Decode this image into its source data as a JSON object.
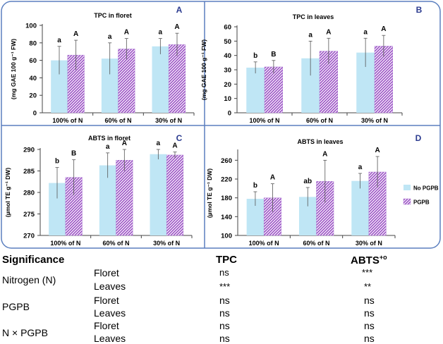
{
  "colors": {
    "no_pgpb": "#bfe6f5",
    "pgpb": "#9a4fc4",
    "pgpb_bg": "#ffffff",
    "frame": "#5b7fbf",
    "panel_letter": "#2b3b8f"
  },
  "chart_data": [
    {
      "id": "A",
      "type": "bar",
      "title": "TPC in floret",
      "ylabel": "(mg GAE 100 g⁻¹ FW)",
      "ylim": [
        0,
        100
      ],
      "yticks": [
        0,
        20,
        40,
        60,
        80,
        100
      ],
      "categories": [
        "100% of N",
        "60% of N",
        "30% of N"
      ],
      "series": [
        {
          "name": "No PGPB",
          "values": [
            60,
            62,
            76
          ],
          "errors": [
            16,
            18,
            9
          ],
          "letters": [
            "a",
            "a",
            "a"
          ]
        },
        {
          "name": "PGPB",
          "values": [
            66,
            73,
            78
          ],
          "errors": [
            17,
            12,
            13
          ],
          "letters": [
            "A",
            "A",
            "A"
          ]
        }
      ]
    },
    {
      "id": "B",
      "type": "bar",
      "title": "TPC in leaves",
      "ylabel": "(mg GAE 100 g⁻¹ FW)",
      "ylim": [
        0,
        60
      ],
      "yticks": [
        0,
        10,
        20,
        30,
        40,
        50,
        60
      ],
      "categories": [
        "100% of N",
        "60% of N",
        "30% of N"
      ],
      "series": [
        {
          "name": "No PGPB",
          "values": [
            31.5,
            38,
            42
          ],
          "errors": [
            4,
            12,
            10
          ],
          "letters": [
            "b",
            "a",
            "a"
          ]
        },
        {
          "name": "PGPB",
          "values": [
            32,
            43,
            46.5
          ],
          "errors": [
            4.5,
            9,
            7.5
          ],
          "letters": [
            "B",
            "A",
            "A"
          ]
        }
      ]
    },
    {
      "id": "C",
      "type": "bar",
      "title": "ABTS in floret",
      "ylabel": "(µmol TE g⁻¹ DW)",
      "ylim": [
        270,
        290
      ],
      "yticks": [
        270,
        275,
        280,
        285,
        290
      ],
      "categories": [
        "100% of N",
        "60% of N",
        "30% of N"
      ],
      "series": [
        {
          "name": "No PGPB",
          "values": [
            282.2,
            286.3,
            288.9
          ],
          "errors": [
            3.6,
            2.9,
            1.2
          ],
          "letters": [
            "b",
            "a",
            "a"
          ]
        },
        {
          "name": "PGPB",
          "values": [
            283.5,
            287.5,
            288.7
          ],
          "errors": [
            4.1,
            2.5,
            0.7
          ],
          "letters": [
            "B",
            "A",
            "A"
          ]
        }
      ]
    },
    {
      "id": "D",
      "type": "bar",
      "title": "ABTS in leaves",
      "ylabel": "(µmol TE g⁻¹ DW)",
      "ylim": [
        100,
        280
      ],
      "yticks": [
        100,
        140,
        180,
        220,
        260
      ],
      "categories": [
        "100% of N",
        "60% of N",
        "30% of N"
      ],
      "series": [
        {
          "name": "No PGPB",
          "values": [
            178,
            182,
            216
          ],
          "errors": [
            15,
            20,
            16
          ],
          "letters": [
            "b",
            "ab",
            "a"
          ]
        },
        {
          "name": "PGPB",
          "values": [
            180,
            215,
            235
          ],
          "errors": [
            30,
            45,
            33
          ],
          "letters": [
            "A",
            "A",
            "A"
          ]
        }
      ],
      "legend": [
        "No PGPB",
        "PGPB"
      ],
      "legend_position": "right"
    }
  ],
  "significance": {
    "header": {
      "label": "Significance",
      "col1": "TPC",
      "col2": "ABTS",
      "col2_sup": "+o"
    },
    "rows": [
      {
        "factor": "Nitrogen (N)",
        "parts": [
          {
            "part": "Floret",
            "tpc": "ns",
            "abts": "***"
          },
          {
            "part": "Leaves",
            "tpc": "***",
            "abts": "**"
          }
        ]
      },
      {
        "factor": "PGPB",
        "parts": [
          {
            "part": "Floret",
            "tpc": "ns",
            "abts": "ns"
          },
          {
            "part": "Leaves",
            "tpc": "ns",
            "abts": "ns"
          }
        ]
      },
      {
        "factor": "N × PGPB",
        "parts": [
          {
            "part": "Floret",
            "tpc": "ns",
            "abts": "ns"
          },
          {
            "part": "Leaves",
            "tpc": "ns",
            "abts": "ns"
          }
        ]
      }
    ]
  }
}
